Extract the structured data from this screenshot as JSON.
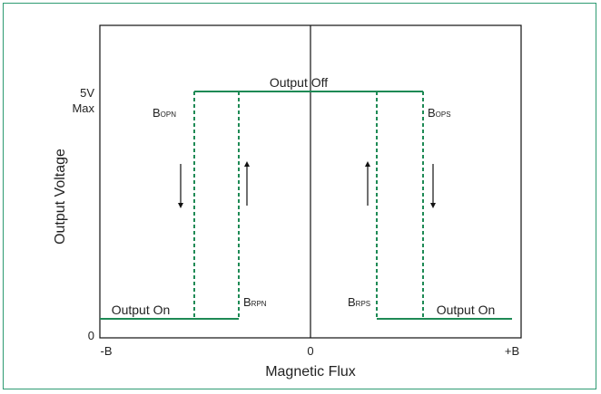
{
  "figure": {
    "frame_color": "#2e9b72",
    "curve_color": "#1e8a55",
    "axis_color": "#111111"
  },
  "axes": {
    "x_label": "Magnetic Flux",
    "y_label": "Output Voltage",
    "x_tick_left": "-B",
    "x_tick_center": "0",
    "x_tick_right": "+B",
    "y_tick_zero": "0",
    "y_tick_top_line1": "5V",
    "y_tick_top_line2": "Max"
  },
  "labels": {
    "output_off": "Output Off",
    "output_on_left": "Output On",
    "output_on_right": "Output On",
    "b_opn": {
      "main": "B",
      "sub": "OPN"
    },
    "b_rpn": {
      "main": "B",
      "sub": "RPN"
    },
    "b_rps": {
      "main": "B",
      "sub": "RPS"
    },
    "b_ops": {
      "main": "B",
      "sub": "OPS"
    }
  },
  "arrows": {
    "left_outer": "down",
    "left_inner": "up",
    "right_inner": "up",
    "right_outer": "down"
  }
}
